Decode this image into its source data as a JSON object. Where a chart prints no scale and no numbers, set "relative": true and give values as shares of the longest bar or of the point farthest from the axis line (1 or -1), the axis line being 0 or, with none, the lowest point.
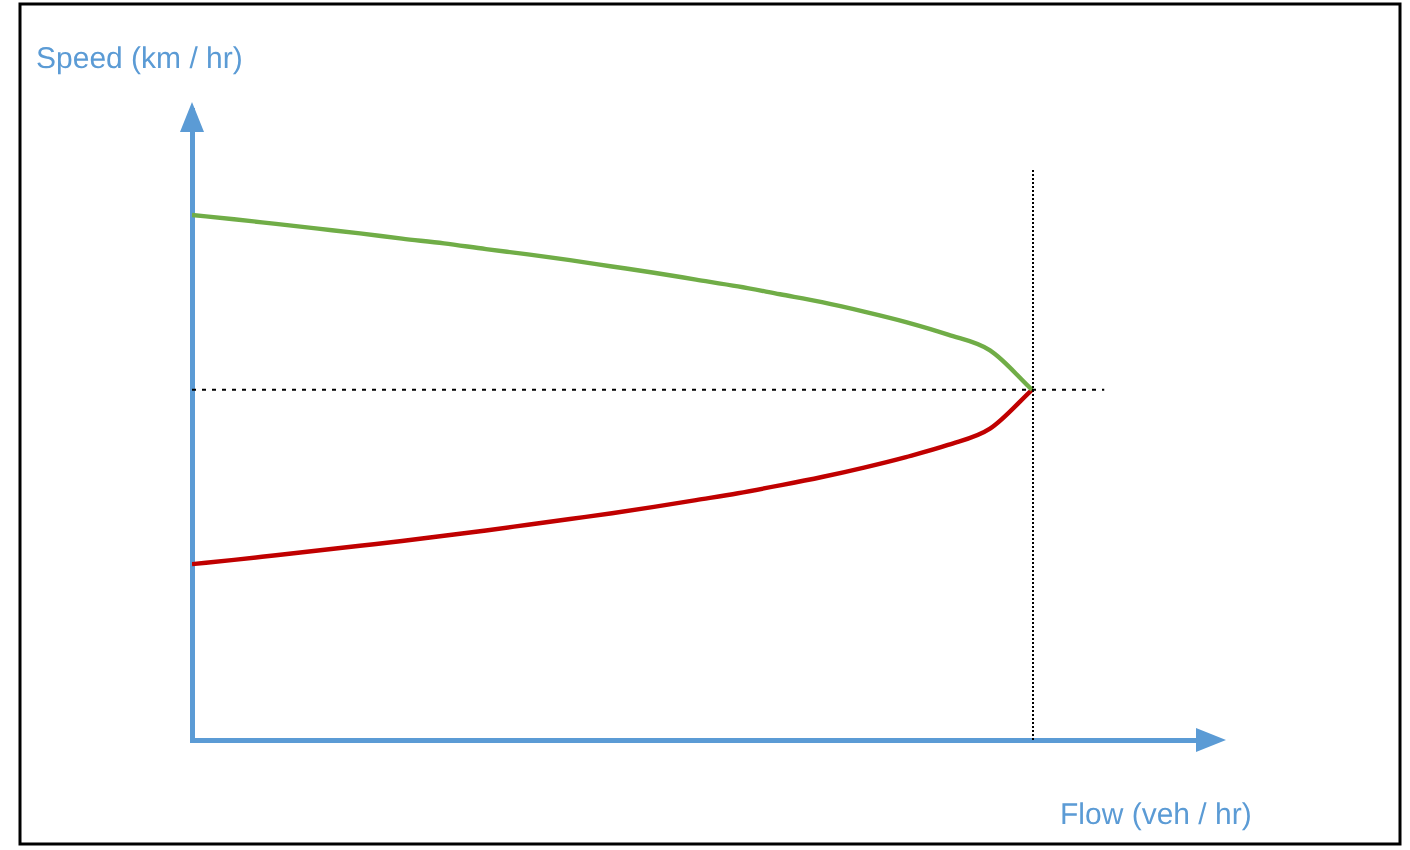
{
  "chart_data": {
    "type": "line",
    "relative": true,
    "xlabel": "Flow (veh / hr)",
    "ylabel": "Speed (km / hr)",
    "grid": false,
    "legend": false,
    "marker": "none",
    "line_style": "solid",
    "categories": [
      null,
      null,
      null,
      null,
      null,
      null,
      null,
      null,
      null,
      null,
      null,
      null,
      null,
      null,
      null,
      null,
      null,
      null,
      null,
      null,
      null
    ],
    "series": [
      {
        "color": "#70ad47",
        "values": [
          1.0,
          0.992,
          0.983,
          0.974,
          0.965,
          0.955,
          0.946,
          0.935,
          0.925,
          0.914,
          0.902,
          0.89,
          0.877,
          0.864,
          0.849,
          0.834,
          0.816,
          0.796,
          0.772,
          0.742,
          0.667
        ]
      },
      {
        "color": "#c00000",
        "values": [
          0.335,
          0.343,
          0.352,
          0.361,
          0.37,
          0.379,
          0.389,
          0.399,
          0.41,
          0.421,
          0.432,
          0.444,
          0.457,
          0.47,
          0.485,
          0.501,
          0.519,
          0.539,
          0.562,
          0.593,
          0.667
        ]
      }
    ],
    "ref_lines": [
      {
        "axis": "y",
        "value": 0.667,
        "color": "#000000",
        "line_style": "dotted"
      }
    ]
  }
}
